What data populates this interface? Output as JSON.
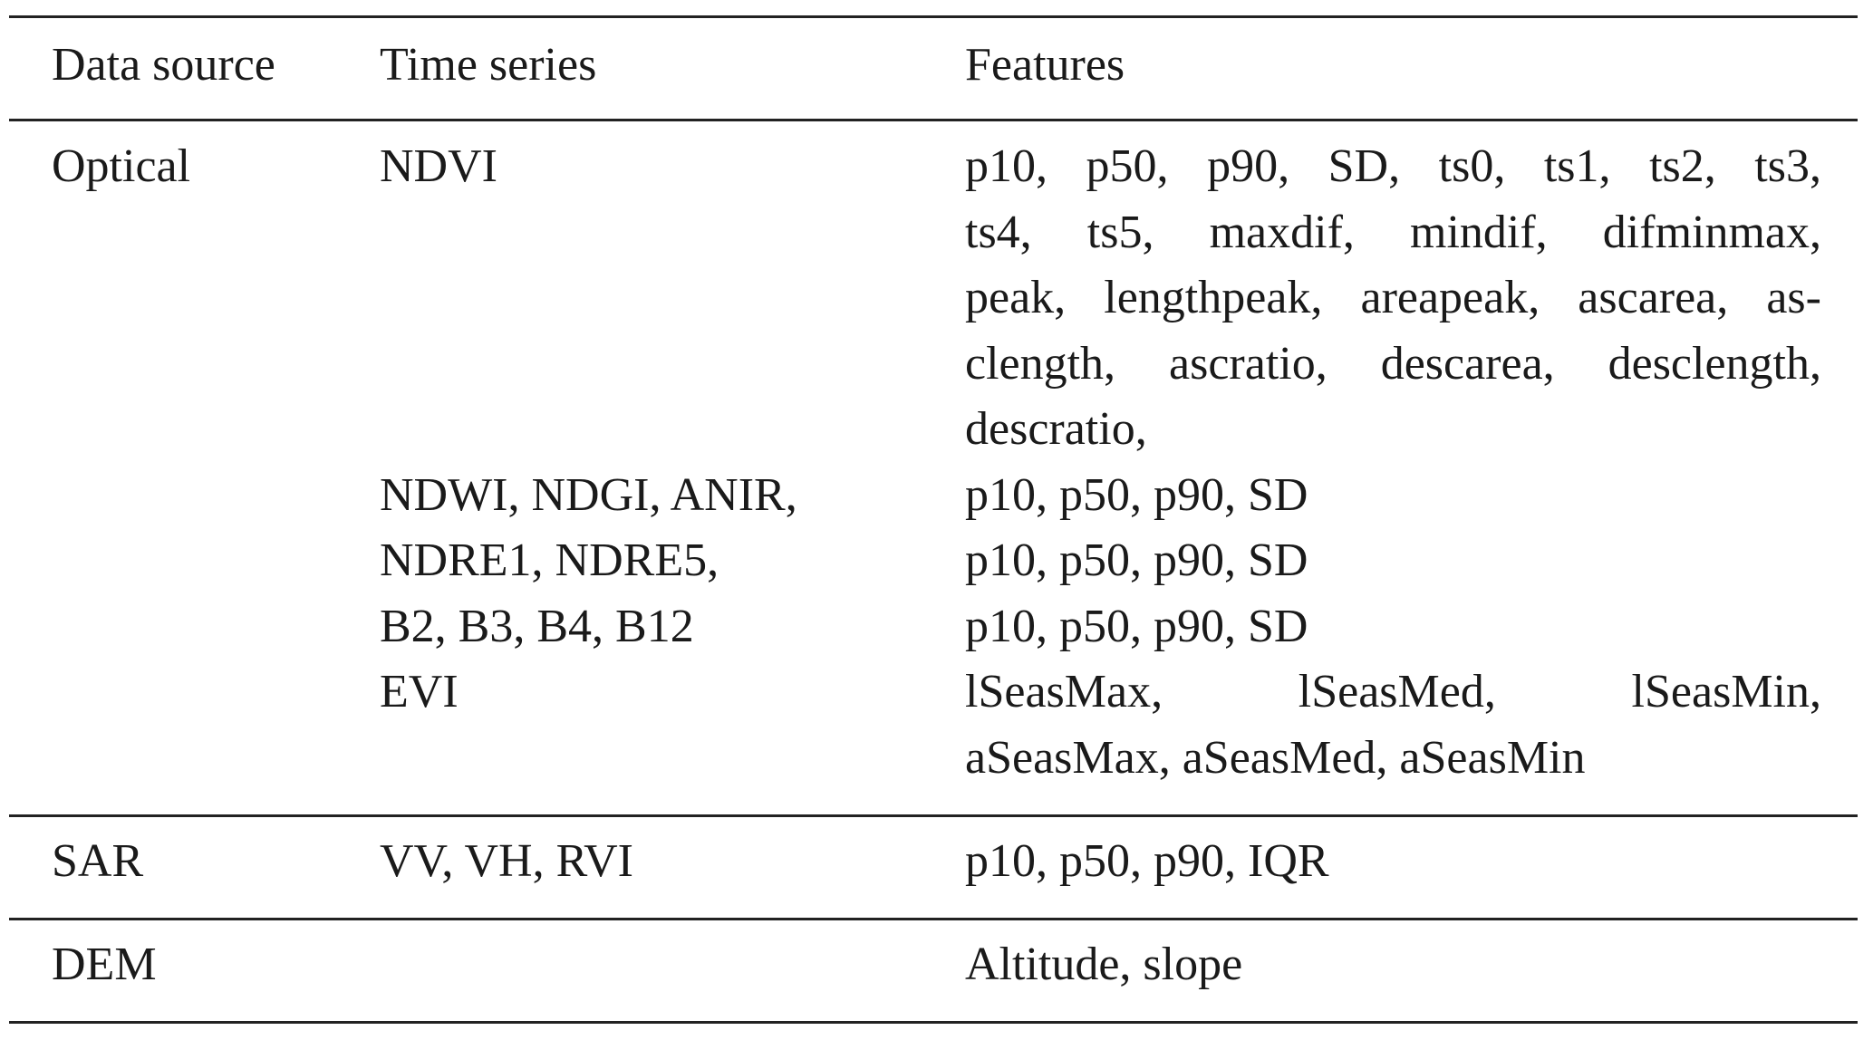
{
  "table": {
    "header": [
      "Data source",
      "Time series",
      "Features"
    ],
    "groups": [
      {
        "source": "Optical",
        "rows": [
          {
            "series": "NDVI",
            "features": [
              "p10, p50, p90, SD, ts0, ts1, ts2, ts3,",
              "ts4, ts5, maxdif, mindif, difminmax,",
              "peak, lengthpeak, areapeak, ascarea, as-",
              "clength, ascratio, descarea, desclength,",
              "descratio,"
            ]
          },
          {
            "series": "NDWI, NDGI, ANIR,",
            "features": [
              "p10, p50, p90, SD"
            ]
          },
          {
            "series": "NDRE1, NDRE5,",
            "features": [
              "p10, p50, p90, SD"
            ]
          },
          {
            "series": "B2, B3, B4, B12",
            "features": [
              "p10, p50, p90, SD"
            ]
          },
          {
            "series": "EVI",
            "features": [
              "lSeasMax, lSeasMed, lSeasMin,",
              "aSeasMax, aSeasMed, aSeasMin"
            ]
          }
        ]
      },
      {
        "source": "SAR",
        "rows": [
          {
            "series": "VV, VH, RVI",
            "features": [
              "p10, p50, p90, IQR"
            ]
          }
        ]
      },
      {
        "source": "DEM",
        "rows": [
          {
            "features": [
              "Altitude, slope"
            ]
          }
        ]
      }
    ]
  }
}
